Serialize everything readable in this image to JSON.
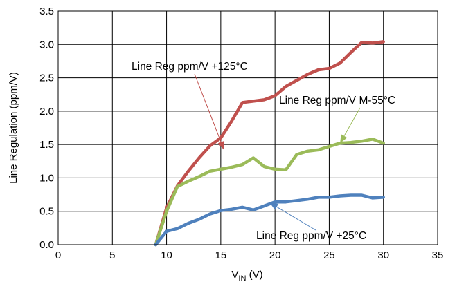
{
  "chart_data": {
    "type": "line",
    "xlabel": {
      "main": "V",
      "sub": "IN",
      "unit": " (V)"
    },
    "ylabel": "Line Regulation (ppm/V)",
    "xlim": [
      0,
      35
    ],
    "ylim": [
      0,
      3.5
    ],
    "xticks": [
      "0",
      "5",
      "10",
      "15",
      "20",
      "25",
      "30",
      "35"
    ],
    "yticks": [
      "0.0",
      "0.5",
      "1.0",
      "1.5",
      "2.0",
      "2.5",
      "3.0",
      "3.5"
    ],
    "grid": true,
    "series": [
      {
        "name": "Line Reg ppm/V +125°C",
        "color": "#c0504d",
        "x": [
          9,
          10,
          11,
          12,
          13,
          14,
          15,
          16,
          17,
          18,
          19,
          20,
          21,
          22,
          23,
          24,
          25,
          26,
          27,
          28,
          29,
          30
        ],
        "y": [
          0.0,
          0.55,
          0.88,
          1.1,
          1.3,
          1.48,
          1.6,
          1.85,
          2.13,
          2.15,
          2.17,
          2.23,
          2.37,
          2.46,
          2.55,
          2.62,
          2.64,
          2.72,
          2.88,
          3.03,
          3.02,
          3.04
        ]
      },
      {
        "name": "Line Reg ppm/V M-55°C",
        "color": "#9bbb59",
        "x": [
          9,
          10,
          11,
          12,
          13,
          14,
          15,
          16,
          17,
          18,
          19,
          20,
          21,
          22,
          23,
          24,
          25,
          26,
          27,
          28,
          29,
          30
        ],
        "y": [
          0.0,
          0.5,
          0.87,
          0.95,
          1.02,
          1.1,
          1.13,
          1.16,
          1.2,
          1.3,
          1.17,
          1.13,
          1.12,
          1.35,
          1.4,
          1.42,
          1.47,
          1.52,
          1.53,
          1.55,
          1.58,
          1.52
        ]
      },
      {
        "name": "Line Reg ppm/V +25°C",
        "color": "#4f81bd",
        "x": [
          9,
          10,
          11,
          12,
          13,
          14,
          15,
          16,
          17,
          18,
          19,
          20,
          21,
          22,
          23,
          24,
          25,
          26,
          27,
          28,
          29,
          30
        ],
        "y": [
          0.0,
          0.2,
          0.24,
          0.32,
          0.38,
          0.46,
          0.51,
          0.53,
          0.56,
          0.52,
          0.58,
          0.64,
          0.64,
          0.66,
          0.68,
          0.71,
          0.71,
          0.73,
          0.74,
          0.74,
          0.7,
          0.71
        ]
      }
    ],
    "annotations": [
      {
        "text": "Line Reg ppm/V +125°C",
        "series": 0,
        "arrow_to": {
          "x": 15.3,
          "y": 1.42
        }
      },
      {
        "text": "Line Reg ppm/V M-55°C",
        "series": 1,
        "arrow_to": {
          "x": 26.0,
          "y": 1.52
        }
      },
      {
        "text": "Line Reg ppm/V +25°C",
        "series": 2,
        "arrow_to": {
          "x": 19.5,
          "y": 0.63
        }
      }
    ]
  }
}
